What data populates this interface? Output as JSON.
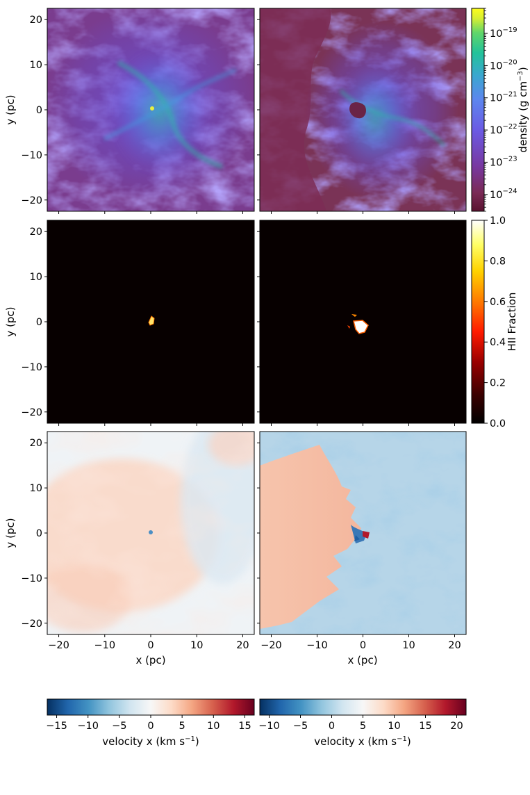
{
  "colors": {
    "density_cmap": [
      "#5a1230",
      "#7a2a55",
      "#6c3c9c",
      "#6b5ae4",
      "#5d86ee",
      "#3aa7cf",
      "#23c29a",
      "#60d66a",
      "#d6ee33",
      "#fdfd1c"
    ],
    "hii_cmap": [
      "#000000",
      "#3a0000",
      "#990000",
      "#ff1a00",
      "#ff7a00",
      "#ffd200",
      "#ffff66",
      "#ffffff"
    ],
    "rdbu_cmap": [
      "#053061",
      "#2166ac",
      "#4393c3",
      "#92c5de",
      "#d1e5f0",
      "#f7f7f7",
      "#fddbc7",
      "#f4a582",
      "#d6604d",
      "#b2182b",
      "#67001f"
    ]
  },
  "chart_data": [
    {
      "type": "heatmap",
      "panel": "density-left",
      "ylabel": "y (pc)",
      "xlim": [
        -22.5,
        22.5
      ],
      "ylim": [
        -22.5,
        22.5
      ],
      "yticks": [
        "20",
        "10",
        "0",
        "−10",
        "−20"
      ]
    },
    {
      "type": "heatmap",
      "panel": "density-right",
      "xlim": [
        -22.5,
        22.5
      ],
      "ylim": [
        -22.5,
        22.5
      ]
    },
    {
      "type": "heatmap",
      "panel": "hii-left",
      "ylabel": "y (pc)",
      "xlim": [
        -22.5,
        22.5
      ],
      "ylim": [
        -22.5,
        22.5
      ],
      "yticks": [
        "20",
        "10",
        "0",
        "−10",
        "−20"
      ],
      "ionized_region_center": [
        0,
        0.5
      ]
    },
    {
      "type": "heatmap",
      "panel": "hii-right",
      "xlim": [
        -22.5,
        22.5
      ],
      "ylim": [
        -22.5,
        22.5
      ],
      "ionized_region_center": [
        0,
        -0.5
      ]
    },
    {
      "type": "heatmap",
      "panel": "velocity-left",
      "ylabel": "y (pc)",
      "xlabel": "x (pc)",
      "xlim": [
        -22.5,
        22.5
      ],
      "ylim": [
        -22.5,
        22.5
      ],
      "xticks": [
        "−20",
        "−10",
        "0",
        "10",
        "20"
      ],
      "yticks": [
        "20",
        "10",
        "0",
        "−10",
        "−20"
      ]
    },
    {
      "type": "heatmap",
      "panel": "velocity-right",
      "xlabel": "x (pc)",
      "xlim": [
        -22.5,
        22.5
      ],
      "ylim": [
        -22.5,
        22.5
      ],
      "xticks": [
        "−20",
        "−10",
        "0",
        "10",
        "20"
      ]
    }
  ],
  "colorbars": {
    "density": {
      "label": "density (g cm",
      "label_sup": "−3",
      "label_end": ")",
      "scale": "log",
      "range": [
        3e-25,
        6e-19
      ],
      "ticks": [
        {
          "value": 1e-19,
          "base": "10",
          "exp": "−19"
        },
        {
          "value": 1e-20,
          "base": "10",
          "exp": "−20"
        },
        {
          "value": 1e-21,
          "base": "10",
          "exp": "−21"
        },
        {
          "value": 1e-22,
          "base": "10",
          "exp": "−22"
        },
        {
          "value": 1e-23,
          "base": "10",
          "exp": "−23"
        },
        {
          "value": 1e-24,
          "base": "10",
          "exp": "−24"
        }
      ]
    },
    "hii": {
      "label": "HII Fraction",
      "range": [
        0,
        1
      ],
      "ticks": [
        {
          "value": 1.0,
          "text": "1.0"
        },
        {
          "value": 0.8,
          "text": "0.8"
        },
        {
          "value": 0.6,
          "text": "0.6"
        },
        {
          "value": 0.4,
          "text": "0.4"
        },
        {
          "value": 0.2,
          "text": "0.2"
        },
        {
          "value": 0.0,
          "text": "0.0"
        }
      ]
    },
    "velocity_left": {
      "label": "velocity x (km s",
      "label_sup": "−1",
      "label_end": ")",
      "range": [
        -16.5,
        16.5
      ],
      "ticks": [
        {
          "value": -15,
          "text": "−15"
        },
        {
          "value": -10,
          "text": "−10"
        },
        {
          "value": -5,
          "text": "−5"
        },
        {
          "value": 0,
          "text": "0"
        },
        {
          "value": 5,
          "text": "5"
        },
        {
          "value": 10,
          "text": "10"
        },
        {
          "value": 15,
          "text": "15"
        }
      ]
    },
    "velocity_right": {
      "label": "velocity x (km s",
      "label_sup": "−1",
      "label_end": ")",
      "range": [
        -11.5,
        21.5
      ],
      "ticks": [
        {
          "value": -10,
          "text": "−10"
        },
        {
          "value": -5,
          "text": "−5"
        },
        {
          "value": 0,
          "text": "0"
        },
        {
          "value": 5,
          "text": "5"
        },
        {
          "value": 10,
          "text": "10"
        },
        {
          "value": 15,
          "text": "15"
        },
        {
          "value": 20,
          "text": "20"
        }
      ]
    }
  }
}
